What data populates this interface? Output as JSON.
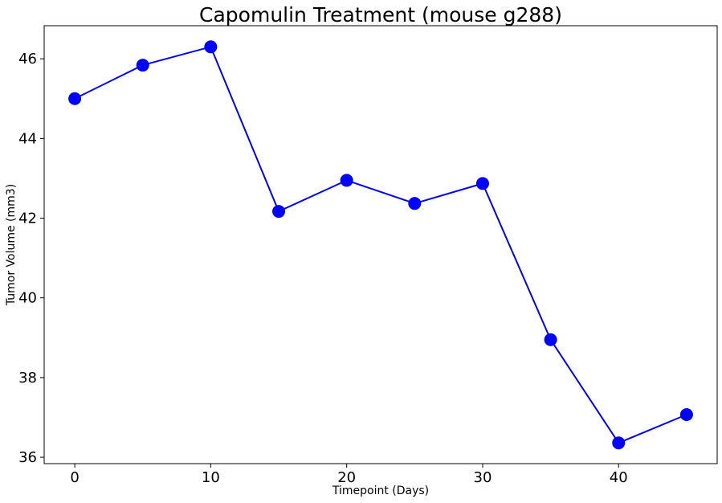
{
  "chart_data": {
    "type": "line",
    "title": "Capomulin Treatment (mouse g288)",
    "xlabel": "Timepoint (Days)",
    "ylabel": "Tumor Volume (mm3)",
    "xlim": [
      -2.25,
      47.25
    ],
    "ylim": [
      35.84,
      46.83
    ],
    "xticks": [
      0,
      10,
      20,
      30,
      40
    ],
    "yticks": [
      36,
      38,
      40,
      42,
      44,
      46
    ],
    "grid": false,
    "series": [
      {
        "color": "#0000ff",
        "marker": "circle",
        "x": [
          0,
          5,
          10,
          15,
          20,
          25,
          30,
          35,
          40,
          45
        ],
        "y": [
          45.0,
          45.84,
          46.3,
          42.17,
          42.95,
          42.37,
          42.87,
          38.95,
          36.36,
          37.07
        ]
      }
    ]
  }
}
